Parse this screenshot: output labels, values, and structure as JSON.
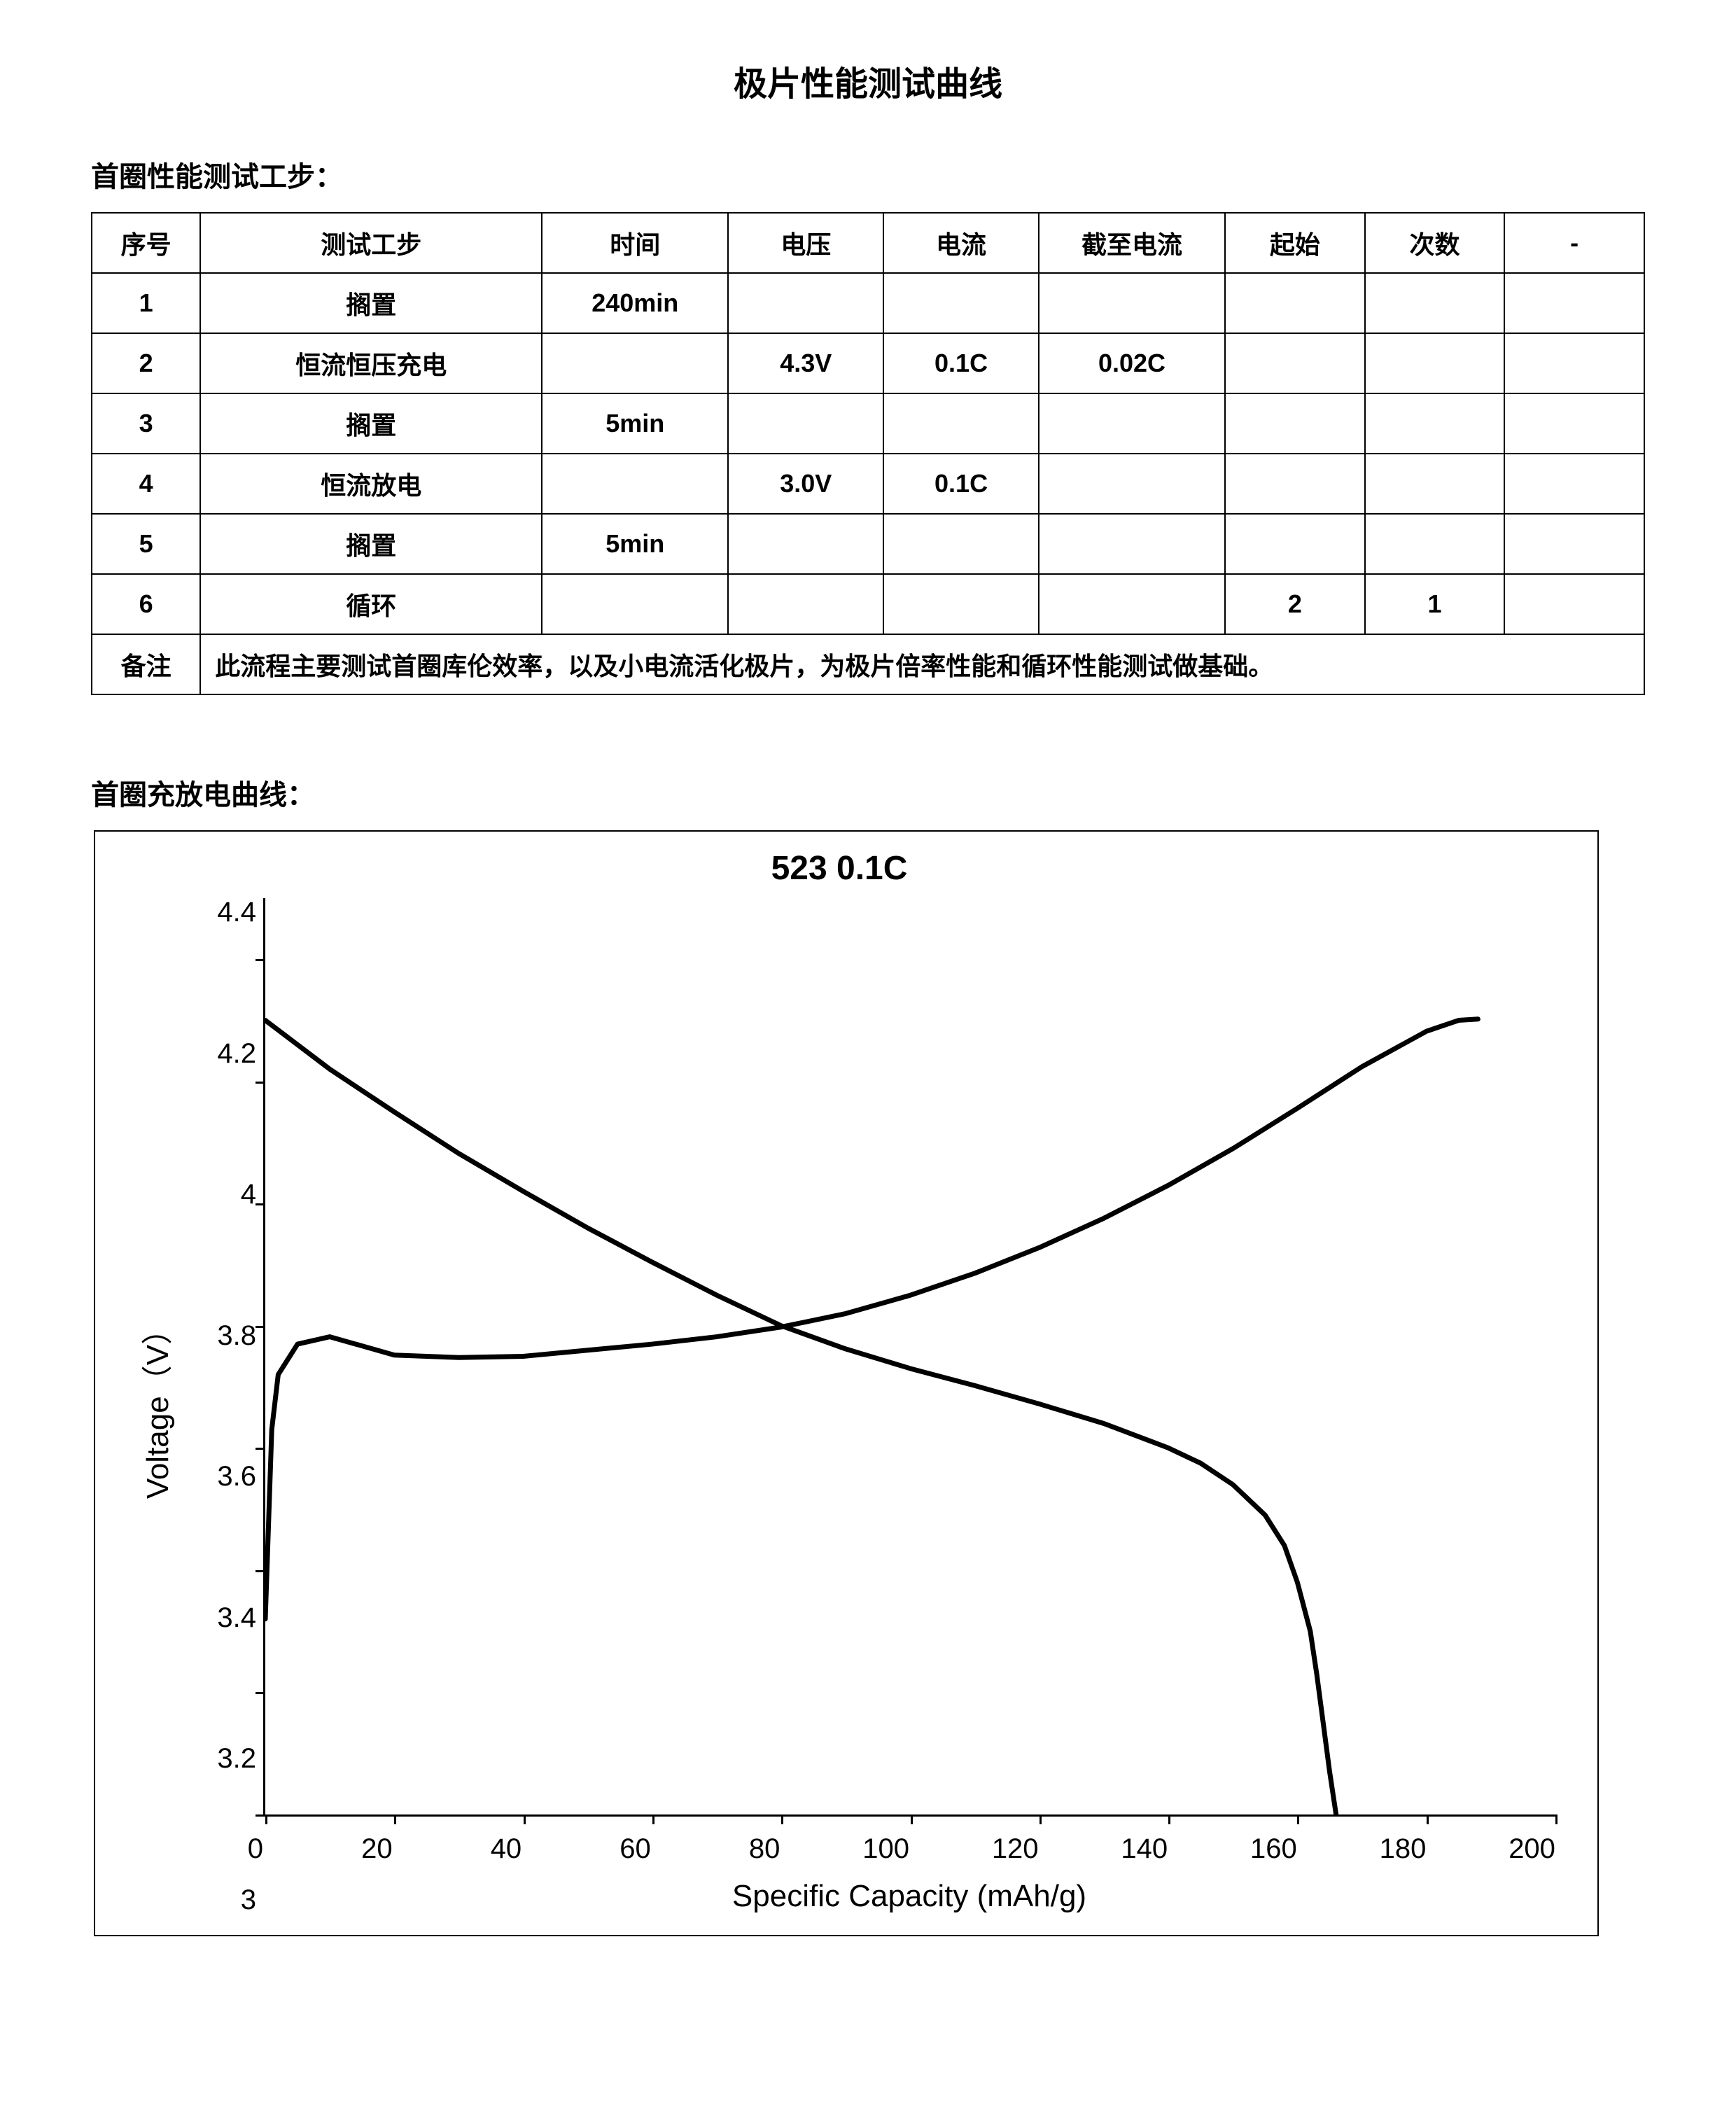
{
  "page_title": "极片性能测试曲线",
  "section1_heading": "首圈性能测试工步：",
  "section2_heading": "首圈充放电曲线：",
  "table": {
    "headers": {
      "seq": "序号",
      "step": "测试工步",
      "time": "时间",
      "voltage": "电压",
      "current": "电流",
      "cutoff_current": "截至电流",
      "start": "起始",
      "count": "次数",
      "blank": "-"
    },
    "rows": [
      {
        "seq": "1",
        "step": "搁置",
        "time": "240min",
        "voltage": "",
        "current": "",
        "cutoff_current": "",
        "start": "",
        "count": "",
        "blank": ""
      },
      {
        "seq": "2",
        "step": "恒流恒压充电",
        "time": "",
        "voltage": "4.3V",
        "current": "0.1C",
        "cutoff_current": "0.02C",
        "start": "",
        "count": "",
        "blank": ""
      },
      {
        "seq": "3",
        "step": "搁置",
        "time": "5min",
        "voltage": "",
        "current": "",
        "cutoff_current": "",
        "start": "",
        "count": "",
        "blank": ""
      },
      {
        "seq": "4",
        "step": "恒流放电",
        "time": "",
        "voltage": "3.0V",
        "current": "0.1C",
        "cutoff_current": "",
        "start": "",
        "count": "",
        "blank": ""
      },
      {
        "seq": "5",
        "step": "搁置",
        "time": "5min",
        "voltage": "",
        "current": "",
        "cutoff_current": "",
        "start": "",
        "count": "",
        "blank": ""
      },
      {
        "seq": "6",
        "step": "循环",
        "time": "",
        "voltage": "",
        "current": "",
        "cutoff_current": "",
        "start": "2",
        "count": "1",
        "blank": ""
      }
    ],
    "note_label": "备注",
    "note_text": "此流程主要测试首圈库伦效率，以及小电流活化极片，为极片倍率性能和循环性能测试做基础。"
  },
  "chart": {
    "type": "line",
    "title": "523  0.1C",
    "x_label": "Specific  Capacity  (mAh/g)",
    "y_label": "Voltage（V）",
    "xlim": [
      0,
      200
    ],
    "ylim": [
      3,
      4.5
    ],
    "x_ticks": [
      0,
      20,
      40,
      60,
      80,
      100,
      120,
      140,
      160,
      180,
      200
    ],
    "y_ticks": [
      3,
      3.2,
      3.4,
      3.6,
      3.8,
      4,
      4.2,
      4.4
    ],
    "line_color": "#000000",
    "line_width": 7,
    "background_color": "#ffffff",
    "border_color": "#000000",
    "title_fontsize": 48,
    "label_fontsize": 44,
    "tick_fontsize": 40,
    "series": {
      "charge": {
        "x": [
          0,
          1,
          2,
          5,
          10,
          20,
          30,
          40,
          50,
          60,
          70,
          80,
          90,
          100,
          110,
          120,
          130,
          140,
          150,
          160,
          170,
          180,
          185,
          188
        ],
        "y": [
          3.32,
          3.63,
          3.72,
          3.77,
          3.782,
          3.752,
          3.748,
          3.75,
          3.76,
          3.77,
          3.782,
          3.798,
          3.82,
          3.85,
          3.886,
          3.928,
          3.976,
          4.03,
          4.09,
          4.156,
          4.224,
          4.282,
          4.3,
          4.302
        ]
      },
      "discharge": {
        "x": [
          0,
          10,
          20,
          30,
          40,
          50,
          60,
          70,
          80,
          90,
          100,
          110,
          120,
          130,
          140,
          145,
          150,
          155,
          158,
          160,
          162,
          163,
          164,
          165,
          166
        ],
        "y": [
          4.3,
          4.22,
          4.15,
          4.082,
          4.02,
          3.96,
          3.904,
          3.85,
          3.8,
          3.762,
          3.73,
          3.702,
          3.672,
          3.64,
          3.6,
          3.575,
          3.54,
          3.49,
          3.44,
          3.38,
          3.3,
          3.23,
          3.15,
          3.07,
          3.0
        ]
      }
    }
  }
}
